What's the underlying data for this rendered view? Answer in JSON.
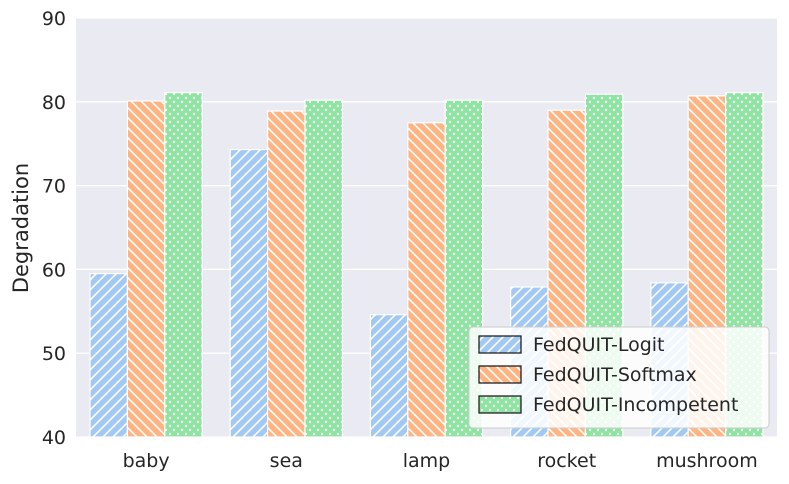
{
  "chart_data": {
    "type": "bar",
    "title": "",
    "xlabel": "",
    "ylabel": "Degradation",
    "ylim": [
      40,
      90
    ],
    "yticks": [
      40,
      50,
      60,
      70,
      80,
      90
    ],
    "grid": true,
    "legend_position": "lower-right",
    "categories": [
      "baby",
      "sea",
      "lamp",
      "rocket",
      "mushroom"
    ],
    "series": [
      {
        "name": "FedQUIT-Logit",
        "color": "#a1c9f4",
        "hatch": "diagonal-forward",
        "values": [
          59.5,
          74.3,
          54.6,
          57.9,
          58.4
        ]
      },
      {
        "name": "FedQUIT-Softmax",
        "color": "#ffb482",
        "hatch": "diagonal-back",
        "values": [
          80.1,
          78.9,
          77.5,
          79.0,
          80.7
        ]
      },
      {
        "name": "FedQUIT-Incompetent",
        "color": "#8de5a1",
        "hatch": "dots",
        "values": [
          81.1,
          80.2,
          80.2,
          80.9,
          81.1
        ]
      }
    ]
  }
}
